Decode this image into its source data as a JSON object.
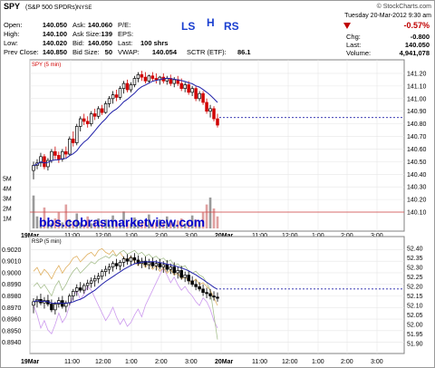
{
  "header": {
    "symbol": "SPY",
    "name": "(S&P 500 SPDRs)",
    "exchange": "NYSE",
    "watermark": "© StockCharts.com",
    "date": "Tuesday  20-Mar-2012  9:30 am",
    "annotations": {
      "ls": "LS",
      "h": "H",
      "rs": "RS"
    },
    "quote": {
      "open_label": "Open:",
      "open": "140.050",
      "high_label": "High:",
      "high": "140.100",
      "low_label": "Low:",
      "low": "140.020",
      "prev_label": "Prev Close:",
      "prev": "140.850",
      "ask_label": "Ask:",
      "ask": "140.060",
      "asksize_label": "Ask Size:",
      "asksize": "139",
      "bid_label": "Bid:",
      "bid": "140.050",
      "bidsize_label": "Bid Size:",
      "bidsize": "50",
      "pe_label": "P/E:",
      "pe": "",
      "eps_label": "EPS:",
      "eps": "",
      "last_label": "Last:",
      "last_shrs": "100 shrs",
      "vwap_label": "VWAP:",
      "vwap": "140.054",
      "sctr_label": "SCTR (ETF):",
      "sctr": "86.1",
      "chg_pct": "-0.57%",
      "chg_label": "Chg:",
      "chg": "-0.800",
      "last2_label": "Last:",
      "last2": "140.050",
      "volume_label": "Volume:",
      "volume": "4,941,078"
    }
  },
  "colors": {
    "up": "#000000",
    "down": "#d00000",
    "ma": "#2222aa",
    "accent_blue": "#0000cc",
    "volume": "#b0b0b0"
  },
  "watermark_link": "bbs.cobrasmarketview.com",
  "chart_data": [
    {
      "type": "candlestick",
      "title": "SPY (5 min)",
      "y_ticks": [
        "141.20",
        "141.10",
        "141.00",
        "140.90",
        "140.80",
        "140.70",
        "140.60",
        "140.50",
        "140.40",
        "140.30",
        "140.20",
        "140.10"
      ],
      "ylim": [
        140.05,
        141.25
      ],
      "x_ticks": [
        "19Mar",
        "11:00",
        "12:00",
        "1:00",
        "2:00",
        "3:00",
        "20Mar",
        "11:00",
        "12:00",
        "1:00",
        "2:00",
        "3:00"
      ],
      "last_price": 140.85,
      "volume_ticks": [
        "5M",
        "4M",
        "3M",
        "2M",
        "1M"
      ],
      "candles": [
        [
          140.43,
          140.5,
          140.36,
          140.47
        ],
        [
          140.47,
          140.52,
          140.44,
          140.49
        ],
        [
          140.49,
          140.57,
          140.46,
          140.54
        ],
        [
          140.54,
          140.56,
          140.44,
          140.46
        ],
        [
          140.46,
          140.53,
          140.43,
          140.51
        ],
        [
          140.51,
          140.6,
          140.49,
          140.58
        ],
        [
          140.58,
          140.62,
          140.52,
          140.55
        ],
        [
          140.55,
          140.58,
          140.49,
          140.52
        ],
        [
          140.52,
          140.6,
          140.5,
          140.58
        ],
        [
          140.58,
          140.62,
          140.53,
          140.56
        ],
        [
          140.56,
          140.7,
          140.55,
          140.68
        ],
        [
          140.68,
          140.74,
          140.62,
          140.65
        ],
        [
          140.65,
          140.8,
          140.63,
          140.78
        ],
        [
          140.78,
          140.86,
          140.74,
          140.84
        ],
        [
          140.84,
          140.88,
          140.79,
          140.82
        ],
        [
          140.82,
          140.86,
          140.77,
          140.8
        ],
        [
          140.8,
          140.9,
          140.78,
          140.88
        ],
        [
          140.88,
          140.92,
          140.83,
          140.86
        ],
        [
          140.86,
          140.94,
          140.84,
          140.92
        ],
        [
          140.92,
          140.95,
          140.87,
          140.89
        ],
        [
          140.89,
          140.98,
          140.88,
          140.96
        ],
        [
          140.96,
          141.02,
          140.93,
          141.0
        ],
        [
          141.0,
          141.06,
          140.96,
          141.03
        ],
        [
          141.03,
          141.07,
          140.98,
          141.01
        ],
        [
          141.01,
          141.1,
          140.99,
          141.08
        ],
        [
          141.08,
          141.14,
          141.04,
          141.12
        ],
        [
          141.12,
          141.15,
          141.05,
          141.07
        ],
        [
          141.07,
          141.13,
          141.05,
          141.11
        ],
        [
          141.11,
          141.18,
          141.09,
          141.16
        ],
        [
          141.16,
          141.21,
          141.13,
          141.19
        ],
        [
          141.19,
          141.22,
          141.14,
          141.17
        ],
        [
          141.17,
          141.21,
          141.12,
          141.14
        ],
        [
          141.14,
          141.19,
          141.12,
          141.18
        ],
        [
          141.18,
          141.21,
          141.14,
          141.16
        ],
        [
          141.16,
          141.2,
          141.12,
          141.15
        ],
        [
          141.15,
          141.18,
          141.11,
          141.17
        ],
        [
          141.17,
          141.2,
          141.12,
          141.14
        ],
        [
          141.14,
          141.18,
          141.11,
          141.16
        ],
        [
          141.16,
          141.19,
          141.1,
          141.12
        ],
        [
          141.12,
          141.17,
          141.09,
          141.15
        ],
        [
          141.15,
          141.18,
          141.1,
          141.12
        ],
        [
          141.12,
          141.16,
          141.06,
          141.08
        ],
        [
          141.08,
          141.13,
          141.05,
          141.11
        ],
        [
          141.11,
          141.14,
          141.03,
          141.05
        ],
        [
          141.05,
          141.1,
          141.02,
          141.08
        ],
        [
          141.08,
          141.1,
          140.98,
          141.0
        ],
        [
          141.0,
          141.06,
          140.98,
          141.04
        ],
        [
          141.04,
          141.06,
          140.95,
          140.97
        ],
        [
          140.97,
          141.0,
          140.88,
          140.9
        ],
        [
          140.9,
          140.95,
          140.85,
          140.92
        ],
        [
          140.92,
          140.94,
          140.82,
          140.84
        ],
        [
          140.84,
          140.88,
          140.77,
          140.79
        ]
      ],
      "volume": [
        3.3,
        1.2,
        0.8,
        2.1,
        0.7,
        0.5,
        1.0,
        1.6,
        0.6,
        2.4,
        0.9,
        0.7,
        1.5,
        0.6,
        0.4,
        1.2,
        0.5,
        0.8,
        1.0,
        0.6,
        0.9,
        0.4,
        1.3,
        0.7,
        0.5,
        1.7,
        0.6,
        0.5,
        1.1,
        0.8,
        0.6,
        0.7,
        1.4,
        0.5,
        0.6,
        0.9,
        0.5,
        1.2,
        0.7,
        0.6,
        0.8,
        1.0,
        0.5,
        0.7,
        1.3,
        0.9,
        0.6,
        1.6,
        2.4,
        3.1,
        2.0,
        1.2
      ]
    },
    {
      "type": "line",
      "title": "RSP (5 min)",
      "left_ticks": [
        "0.9020",
        "0.9010",
        "0.9000",
        "0.8990",
        "0.8980",
        "0.8970",
        "0.8960",
        "0.8950",
        "0.8940"
      ],
      "right_ticks": [
        "52.40",
        "52.35",
        "52.30",
        "52.25",
        "52.20",
        "52.15",
        "52.10",
        "52.05",
        "52.00",
        "51.95",
        "51.90"
      ],
      "ylim": [
        0.8935,
        0.9025
      ],
      "x_ticks": [
        "19Mar",
        "11:00",
        "12:00",
        "1:00",
        "2:00",
        "3:00",
        "20Mar",
        "11:00",
        "12:00",
        "1:00",
        "2:00",
        "3:00"
      ],
      "ratio_candles": [
        [
          0.8972,
          0.8978,
          0.8965,
          0.8975
        ],
        [
          0.8975,
          0.898,
          0.897,
          0.8977
        ],
        [
          0.8977,
          0.8982,
          0.8972,
          0.8974
        ],
        [
          0.8974,
          0.8979,
          0.8969,
          0.8976
        ],
        [
          0.8976,
          0.8981,
          0.8971,
          0.8973
        ],
        [
          0.8973,
          0.8977,
          0.8966,
          0.8968
        ],
        [
          0.8968,
          0.8975,
          0.8964,
          0.8973
        ],
        [
          0.8973,
          0.8979,
          0.897,
          0.8976
        ],
        [
          0.8976,
          0.898,
          0.8969,
          0.8971
        ],
        [
          0.8971,
          0.8976,
          0.8966,
          0.8974
        ],
        [
          0.8974,
          0.8982,
          0.8972,
          0.898
        ],
        [
          0.898,
          0.8986,
          0.8976,
          0.8984
        ],
        [
          0.8984,
          0.899,
          0.898,
          0.8987
        ],
        [
          0.8987,
          0.8992,
          0.8983,
          0.8985
        ],
        [
          0.8985,
          0.8991,
          0.8982,
          0.8989
        ],
        [
          0.8989,
          0.8994,
          0.8985,
          0.8991
        ],
        [
          0.8991,
          0.8996,
          0.8987,
          0.8993
        ],
        [
          0.8993,
          0.8998,
          0.8988,
          0.8995
        ],
        [
          0.8995,
          0.9,
          0.8991,
          0.8997
        ],
        [
          0.8997,
          0.9003,
          0.8994,
          0.9001
        ],
        [
          0.9001,
          0.9006,
          0.8997,
          0.9003
        ],
        [
          0.9003,
          0.9008,
          0.8999,
          0.9005
        ],
        [
          0.9005,
          0.901,
          0.9001,
          0.9008
        ],
        [
          0.9008,
          0.9012,
          0.9003,
          0.9006
        ],
        [
          0.9006,
          0.9011,
          0.9002,
          0.9009
        ],
        [
          0.9009,
          0.9014,
          0.9005,
          0.9012
        ],
        [
          0.9012,
          0.9016,
          0.9007,
          0.901
        ],
        [
          0.901,
          0.9015,
          0.9006,
          0.9013
        ],
        [
          0.9013,
          0.9017,
          0.9008,
          0.9011
        ],
        [
          0.9011,
          0.9015,
          0.9006,
          0.9008
        ],
        [
          0.9008,
          0.9013,
          0.9004,
          0.901
        ],
        [
          0.901,
          0.9014,
          0.9005,
          0.9007
        ],
        [
          0.9007,
          0.9012,
          0.9003,
          0.9009
        ],
        [
          0.9009,
          0.9013,
          0.9004,
          0.9006
        ],
        [
          0.9006,
          0.9011,
          0.9002,
          0.9008
        ],
        [
          0.9008,
          0.9012,
          0.9003,
          0.9005
        ],
        [
          0.9005,
          0.901,
          0.9,
          0.9007
        ],
        [
          0.9007,
          0.9011,
          0.9001,
          0.9003
        ],
        [
          0.9003,
          0.9008,
          0.8999,
          0.9005
        ],
        [
          0.9005,
          0.9009,
          0.8998,
          0.9
        ],
        [
          0.9,
          0.9005,
          0.8995,
          0.9002
        ],
        [
          0.9002,
          0.9006,
          0.8994,
          0.8996
        ],
        [
          0.8996,
          0.9001,
          0.8992,
          0.8998
        ],
        [
          0.8998,
          0.9002,
          0.899,
          0.8993
        ],
        [
          0.8993,
          0.8997,
          0.8988,
          0.899
        ],
        [
          0.899,
          0.8994,
          0.8985,
          0.8988
        ],
        [
          0.8988,
          0.8992,
          0.8984,
          0.8986
        ],
        [
          0.8986,
          0.899,
          0.898,
          0.8983
        ],
        [
          0.8983,
          0.8987,
          0.8978,
          0.8982
        ],
        [
          0.8982,
          0.8986,
          0.8977,
          0.898
        ],
        [
          0.898,
          0.8984,
          0.8976,
          0.8979
        ],
        [
          0.8979,
          0.8983,
          0.8975,
          0.8978
        ]
      ],
      "rsp_line": [
        52.2,
        52.22,
        52.19,
        52.21,
        52.18,
        52.15,
        52.2,
        52.23,
        52.18,
        52.21,
        52.25,
        52.28,
        52.3,
        52.27,
        52.29,
        52.31,
        52.33,
        52.32,
        52.34,
        52.35,
        52.36,
        52.35,
        52.37,
        52.36,
        52.38,
        52.39,
        52.37,
        52.38,
        52.39,
        52.37,
        52.38,
        52.36,
        52.37,
        52.35,
        52.36,
        52.34,
        52.35,
        52.33,
        52.34,
        52.31,
        52.32,
        52.3,
        52.31,
        52.28,
        52.27,
        52.28,
        52.26,
        52.25,
        52.22,
        52.18,
        52.05,
        51.92
      ],
      "spy_line": [
        52.28,
        52.3,
        52.26,
        52.29,
        52.27,
        52.24,
        52.28,
        52.31,
        52.27,
        52.3,
        52.32,
        52.35,
        52.36,
        52.33,
        52.35,
        52.37,
        52.38,
        52.36,
        52.39,
        52.4,
        52.38,
        52.37,
        52.39,
        52.36,
        52.38,
        52.35,
        52.34,
        52.36,
        52.33,
        52.31,
        52.33,
        52.3,
        52.32,
        52.29,
        52.31,
        52.28,
        52.3,
        52.27,
        52.29,
        52.26,
        52.27,
        52.24,
        52.25,
        52.23,
        52.22,
        52.24,
        52.21,
        52.22,
        52.2,
        52.18,
        52.14,
        52.1
      ],
      "ratio_line": [
        52.1,
        52.05,
        51.98,
        52.02,
        51.97,
        51.95,
        52.0,
        52.06,
        52.01,
        52.04,
        52.1,
        52.15,
        52.18,
        52.13,
        52.16,
        52.2,
        52.18,
        52.14,
        52.1,
        52.06,
        52.02,
        52.05,
        52.09,
        52.04,
        52.0,
        52.03,
        51.99,
        52.01,
        52.05,
        52.08,
        52.04,
        52.1,
        52.14,
        52.18,
        52.22,
        52.26,
        52.3,
        52.26,
        52.22,
        52.25,
        52.21,
        52.18,
        52.2,
        52.17,
        52.15,
        52.12,
        52.1,
        52.14,
        52.12,
        52.08,
        52.02,
        51.98
      ],
      "last_level": 0.8986
    }
  ]
}
